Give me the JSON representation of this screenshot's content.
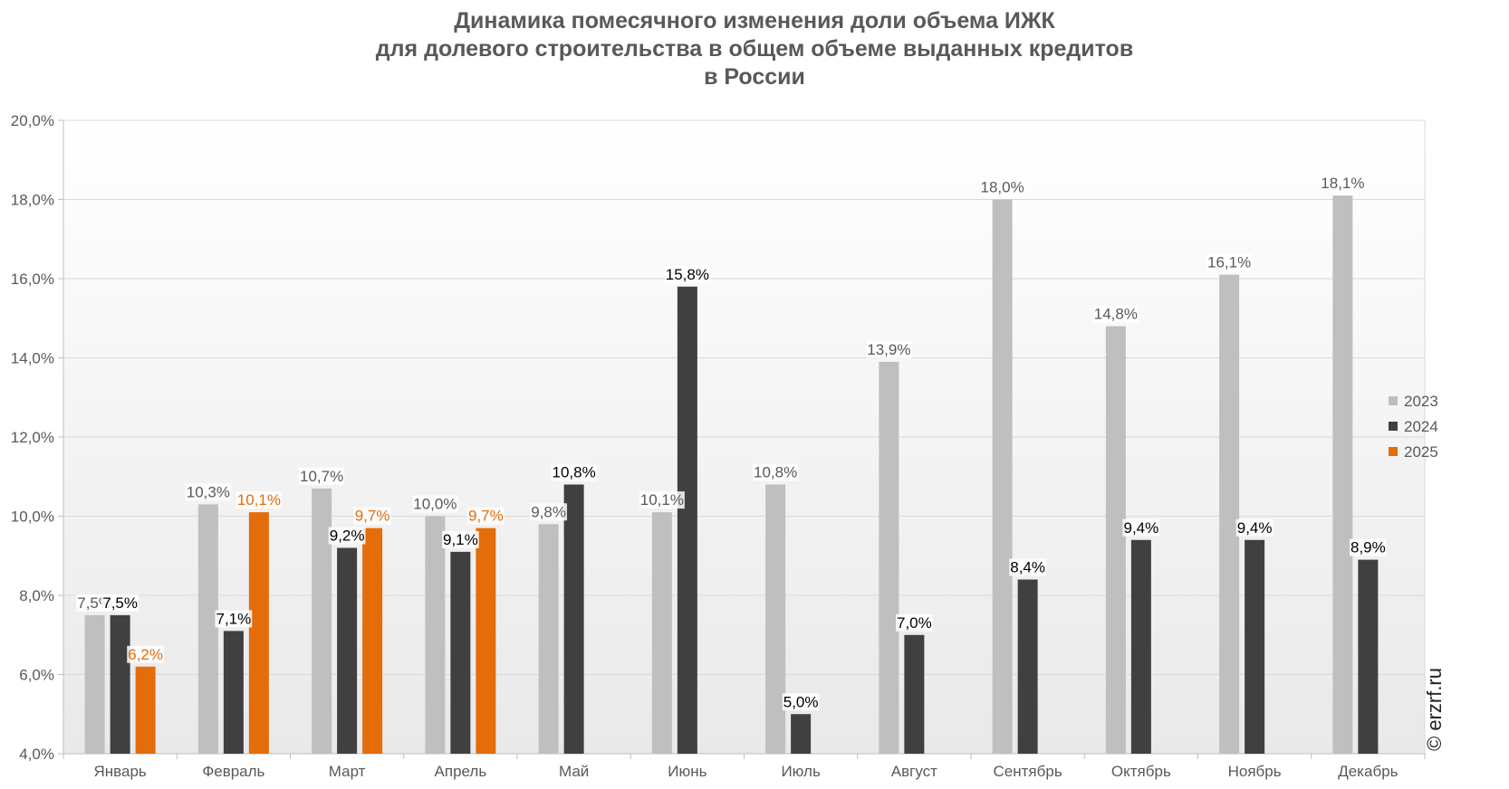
{
  "chart_data": {
    "type": "bar",
    "title_lines": [
      "Динамика помесячного изменения доли объема ИЖК",
      "для долевого строительства в общем объеме выданных кредитов",
      "в России"
    ],
    "categories": [
      "Январь",
      "Февраль",
      "Март",
      "Апрель",
      "Май",
      "Июнь",
      "Июль",
      "Август",
      "Сентябрь",
      "Октябрь",
      "Ноябрь",
      "Декабрь"
    ],
    "series": [
      {
        "name": "2023",
        "color": "#bfbfbf",
        "label_color": "#595959",
        "values": [
          7.5,
          10.3,
          10.7,
          10.0,
          9.8,
          10.1,
          10.8,
          13.9,
          18.0,
          14.8,
          16.1,
          18.1
        ],
        "labels": [
          "7,5%",
          "10,3%",
          "10,7%",
          "10,0%",
          "9,8%",
          "10,1%",
          "10,8%",
          "13,9%",
          "18,0%",
          "14,8%",
          "16,1%",
          "18,1%"
        ]
      },
      {
        "name": "2024",
        "color": "#404040",
        "label_color": "#000000",
        "values": [
          7.5,
          7.1,
          9.2,
          9.1,
          10.8,
          15.8,
          5.0,
          7.0,
          8.4,
          9.4,
          9.4,
          8.9
        ],
        "labels": [
          "7,5%",
          "7,1%",
          "9,2%",
          "9,1%",
          "10,8%",
          "15,8%",
          "5,0%",
          "7,0%",
          "8,4%",
          "9,4%",
          "9,4%",
          "8,9%"
        ]
      },
      {
        "name": "2025",
        "color": "#e46c0a",
        "label_color": "#e46c0a",
        "values": [
          6.2,
          10.1,
          9.7,
          9.7,
          null,
          null,
          null,
          null,
          null,
          null,
          null,
          null
        ],
        "labels": [
          "6,2%",
          "10,1%",
          "9,7%",
          "9,7%",
          "",
          "",
          "",
          "",
          "",
          "",
          "",
          ""
        ]
      }
    ],
    "ylim": [
      4,
      20
    ],
    "yticks": [
      "4,0%",
      "6,0%",
      "8,0%",
      "10,0%",
      "12,0%",
      "14,0%",
      "16,0%",
      "18,0%",
      "20,0%"
    ],
    "ytick_values": [
      4,
      6,
      8,
      10,
      12,
      14,
      16,
      18,
      20
    ],
    "grid": true,
    "legend_position": "right",
    "xlabel": "",
    "ylabel": ""
  },
  "watermark": "© erzrf.ru"
}
